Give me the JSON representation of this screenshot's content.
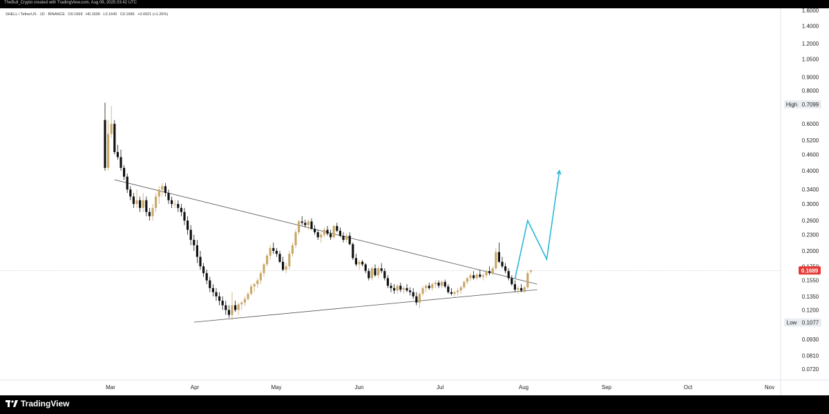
{
  "header": {
    "created_by": "TheBull_Crypto created with TradingView.com, Aug 09, 2025 03:42 UTC"
  },
  "symbol": {
    "name": "SHELL / TetherUS · 1D · BINANCE",
    "open": "O0.1669",
    "high": "H0.1699",
    "low": "L0.1640",
    "close": "C0.1689",
    "change": "+0.0021 (+1.26%)"
  },
  "footer": {
    "brand": "TradingView",
    "logo_icon": "tradingview-logo-icon"
  },
  "colors": {
    "up": "#c8a86a",
    "down": "#111111",
    "projection": "#29b6d6",
    "last_price": "#e53935",
    "trendline": "#555555"
  },
  "chart_data": {
    "type": "candlestick",
    "scale": "log",
    "ylim": [
      0.068,
      1.6
    ],
    "price_ticks": [
      "1.6000",
      "1.4000",
      "1.2000",
      "1.0500",
      "0.9000",
      "0.8000",
      "0.7099",
      "0.6000",
      "0.5200",
      "0.4600",
      "0.4000",
      "0.3400",
      "0.3000",
      "0.2600",
      "0.2300",
      "0.2000",
      "0.1750",
      "0.1689",
      "0.1550",
      "0.1350",
      "0.1200",
      "0.1077",
      "0.0930",
      "0.0810",
      "0.0720"
    ],
    "time_ticks": [
      "Mar",
      "Apr",
      "May",
      "Jun",
      "Jul",
      "Aug",
      "Sep",
      "Oct",
      "Nov"
    ],
    "markers": [
      {
        "label": "High",
        "value": "0.7099"
      },
      {
        "label": "Low",
        "value": "0.1077"
      }
    ],
    "last_price": {
      "value": 0.1689,
      "label": "0.1689"
    },
    "candles": [
      [
        0.62,
        0.72,
        0.4,
        0.41
      ],
      [
        0.41,
        0.62,
        0.4,
        0.55
      ],
      [
        0.55,
        0.7,
        0.53,
        0.6
      ],
      [
        0.6,
        0.62,
        0.46,
        0.47
      ],
      [
        0.47,
        0.5,
        0.44,
        0.45
      ],
      [
        0.45,
        0.48,
        0.4,
        0.41
      ],
      [
        0.41,
        0.42,
        0.37,
        0.38
      ],
      [
        0.38,
        0.39,
        0.33,
        0.34
      ],
      [
        0.34,
        0.35,
        0.31,
        0.32
      ],
      [
        0.32,
        0.33,
        0.29,
        0.3
      ],
      [
        0.3,
        0.34,
        0.29,
        0.31
      ],
      [
        0.31,
        0.32,
        0.28,
        0.29
      ],
      [
        0.29,
        0.33,
        0.28,
        0.31
      ],
      [
        0.31,
        0.32,
        0.27,
        0.28
      ],
      [
        0.28,
        0.29,
        0.26,
        0.27
      ],
      [
        0.27,
        0.3,
        0.26,
        0.29
      ],
      [
        0.29,
        0.33,
        0.28,
        0.32
      ],
      [
        0.32,
        0.35,
        0.3,
        0.34
      ],
      [
        0.34,
        0.36,
        0.32,
        0.35
      ],
      [
        0.35,
        0.36,
        0.32,
        0.33
      ],
      [
        0.33,
        0.34,
        0.3,
        0.31
      ],
      [
        0.31,
        0.32,
        0.29,
        0.3
      ],
      [
        0.3,
        0.31,
        0.29,
        0.3
      ],
      [
        0.3,
        0.31,
        0.28,
        0.29
      ],
      [
        0.29,
        0.3,
        0.27,
        0.28
      ],
      [
        0.28,
        0.29,
        0.25,
        0.26
      ],
      [
        0.26,
        0.27,
        0.23,
        0.24
      ],
      [
        0.24,
        0.25,
        0.21,
        0.22
      ],
      [
        0.22,
        0.23,
        0.2,
        0.21
      ],
      [
        0.21,
        0.22,
        0.18,
        0.19
      ],
      [
        0.19,
        0.2,
        0.17,
        0.175
      ],
      [
        0.175,
        0.18,
        0.16,
        0.165
      ],
      [
        0.165,
        0.17,
        0.15,
        0.155
      ],
      [
        0.155,
        0.16,
        0.14,
        0.145
      ],
      [
        0.145,
        0.15,
        0.135,
        0.14
      ],
      [
        0.14,
        0.145,
        0.13,
        0.135
      ],
      [
        0.135,
        0.14,
        0.125,
        0.13
      ],
      [
        0.13,
        0.135,
        0.12,
        0.125
      ],
      [
        0.125,
        0.13,
        0.115,
        0.12
      ],
      [
        0.12,
        0.125,
        0.112,
        0.115
      ],
      [
        0.115,
        0.14,
        0.11,
        0.125
      ],
      [
        0.125,
        0.13,
        0.118,
        0.12
      ],
      [
        0.12,
        0.128,
        0.115,
        0.126
      ],
      [
        0.126,
        0.13,
        0.12,
        0.128
      ],
      [
        0.128,
        0.135,
        0.124,
        0.132
      ],
      [
        0.132,
        0.14,
        0.13,
        0.138
      ],
      [
        0.138,
        0.15,
        0.136,
        0.147
      ],
      [
        0.147,
        0.152,
        0.14,
        0.15
      ],
      [
        0.15,
        0.158,
        0.145,
        0.155
      ],
      [
        0.155,
        0.168,
        0.15,
        0.165
      ],
      [
        0.165,
        0.18,
        0.16,
        0.178
      ],
      [
        0.178,
        0.195,
        0.175,
        0.192
      ],
      [
        0.192,
        0.21,
        0.185,
        0.205
      ],
      [
        0.205,
        0.215,
        0.195,
        0.2
      ],
      [
        0.2,
        0.205,
        0.19,
        0.195
      ],
      [
        0.195,
        0.2,
        0.18,
        0.182
      ],
      [
        0.182,
        0.19,
        0.168,
        0.17
      ],
      [
        0.17,
        0.18,
        0.165,
        0.175
      ],
      [
        0.175,
        0.2,
        0.17,
        0.195
      ],
      [
        0.195,
        0.215,
        0.19,
        0.21
      ],
      [
        0.21,
        0.24,
        0.205,
        0.235
      ],
      [
        0.235,
        0.262,
        0.23,
        0.258
      ],
      [
        0.258,
        0.27,
        0.25,
        0.255
      ],
      [
        0.255,
        0.262,
        0.245,
        0.25
      ],
      [
        0.25,
        0.262,
        0.24,
        0.258
      ],
      [
        0.258,
        0.265,
        0.24,
        0.242
      ],
      [
        0.242,
        0.25,
        0.23,
        0.235
      ],
      [
        0.235,
        0.24,
        0.22,
        0.225
      ],
      [
        0.225,
        0.235,
        0.215,
        0.23
      ],
      [
        0.23,
        0.245,
        0.225,
        0.24
      ],
      [
        0.24,
        0.248,
        0.228,
        0.232
      ],
      [
        0.232,
        0.24,
        0.22,
        0.225
      ],
      [
        0.225,
        0.25,
        0.222,
        0.248
      ],
      [
        0.248,
        0.255,
        0.235,
        0.238
      ],
      [
        0.238,
        0.245,
        0.225,
        0.228
      ],
      [
        0.228,
        0.235,
        0.215,
        0.22
      ],
      [
        0.22,
        0.232,
        0.215,
        0.228
      ],
      [
        0.228,
        0.235,
        0.21,
        0.212
      ],
      [
        0.212,
        0.215,
        0.185,
        0.188
      ],
      [
        0.188,
        0.195,
        0.175,
        0.178
      ],
      [
        0.178,
        0.185,
        0.17,
        0.182
      ],
      [
        0.182,
        0.185,
        0.175,
        0.178
      ],
      [
        0.178,
        0.18,
        0.165,
        0.168
      ],
      [
        0.168,
        0.172,
        0.155,
        0.158
      ],
      [
        0.158,
        0.175,
        0.155,
        0.172
      ],
      [
        0.172,
        0.178,
        0.16,
        0.162
      ],
      [
        0.162,
        0.175,
        0.158,
        0.172
      ],
      [
        0.172,
        0.18,
        0.165,
        0.168
      ],
      [
        0.168,
        0.172,
        0.155,
        0.158
      ],
      [
        0.158,
        0.162,
        0.145,
        0.148
      ],
      [
        0.148,
        0.152,
        0.14,
        0.145
      ],
      [
        0.145,
        0.15,
        0.138,
        0.142
      ],
      [
        0.142,
        0.15,
        0.138,
        0.148
      ],
      [
        0.148,
        0.152,
        0.14,
        0.143
      ],
      [
        0.143,
        0.147,
        0.138,
        0.145
      ],
      [
        0.145,
        0.15,
        0.14,
        0.142
      ],
      [
        0.142,
        0.146,
        0.136,
        0.14
      ],
      [
        0.14,
        0.145,
        0.132,
        0.135
      ],
      [
        0.135,
        0.14,
        0.125,
        0.128
      ],
      [
        0.128,
        0.14,
        0.122,
        0.138
      ],
      [
        0.138,
        0.148,
        0.135,
        0.145
      ],
      [
        0.145,
        0.15,
        0.14,
        0.148
      ],
      [
        0.148,
        0.152,
        0.143,
        0.145
      ],
      [
        0.145,
        0.152,
        0.142,
        0.15
      ],
      [
        0.15,
        0.155,
        0.145,
        0.152
      ],
      [
        0.152,
        0.155,
        0.145,
        0.148
      ],
      [
        0.148,
        0.155,
        0.145,
        0.153
      ],
      [
        0.153,
        0.156,
        0.145,
        0.147
      ],
      [
        0.147,
        0.15,
        0.138,
        0.14
      ],
      [
        0.14,
        0.145,
        0.136,
        0.138
      ],
      [
        0.138,
        0.142,
        0.134,
        0.14
      ],
      [
        0.14,
        0.145,
        0.136,
        0.142
      ],
      [
        0.142,
        0.148,
        0.138,
        0.146
      ],
      [
        0.146,
        0.155,
        0.144,
        0.153
      ],
      [
        0.153,
        0.16,
        0.15,
        0.158
      ],
      [
        0.158,
        0.165,
        0.154,
        0.162
      ],
      [
        0.162,
        0.168,
        0.156,
        0.158
      ],
      [
        0.158,
        0.165,
        0.155,
        0.163
      ],
      [
        0.163,
        0.17,
        0.158,
        0.16
      ],
      [
        0.16,
        0.165,
        0.155,
        0.162
      ],
      [
        0.162,
        0.17,
        0.158,
        0.168
      ],
      [
        0.168,
        0.175,
        0.162,
        0.165
      ],
      [
        0.165,
        0.175,
        0.162,
        0.172
      ],
      [
        0.172,
        0.205,
        0.17,
        0.198
      ],
      [
        0.198,
        0.215,
        0.18,
        0.182
      ],
      [
        0.182,
        0.19,
        0.172,
        0.175
      ],
      [
        0.175,
        0.18,
        0.165,
        0.168
      ],
      [
        0.168,
        0.172,
        0.155,
        0.158
      ],
      [
        0.158,
        0.162,
        0.148,
        0.15
      ],
      [
        0.15,
        0.155,
        0.14,
        0.143
      ],
      [
        0.143,
        0.148,
        0.138,
        0.145
      ],
      [
        0.145,
        0.15,
        0.14,
        0.142
      ],
      [
        0.142,
        0.148,
        0.139,
        0.146
      ],
      [
        0.146,
        0.168,
        0.144,
        0.165
      ],
      [
        0.1669,
        0.1699,
        0.164,
        0.1689
      ]
    ],
    "trendlines": [
      {
        "name": "descending-resistance",
        "from": [
          0.37,
          3
        ],
        "to": [
          0.15,
          136
        ]
      },
      {
        "name": "ascending-support",
        "from": [
          0.108,
          28
        ],
        "to": [
          0.143,
          136
        ]
      }
    ],
    "projection": [
      [
        0.157,
        129
      ],
      [
        0.26,
        133
      ],
      [
        0.186,
        139
      ],
      [
        0.4,
        143
      ]
    ]
  }
}
